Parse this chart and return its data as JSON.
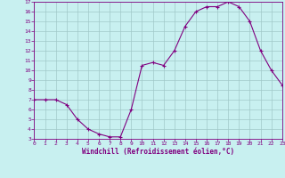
{
  "x": [
    0,
    1,
    2,
    3,
    4,
    5,
    6,
    7,
    8,
    9,
    10,
    11,
    12,
    13,
    14,
    15,
    16,
    17,
    18,
    19,
    20,
    21,
    22,
    23
  ],
  "y": [
    7,
    7,
    7,
    6.5,
    5,
    4,
    3.5,
    3.2,
    3.2,
    6,
    10.5,
    10.8,
    10.5,
    12,
    14.5,
    16,
    16.5,
    16.5,
    17,
    16.5,
    15,
    12,
    10,
    8.5
  ],
  "xlabel": "Windchill (Refroidissement éolien,°C)",
  "ylim": [
    3,
    17
  ],
  "xlim": [
    0,
    23
  ],
  "yticks": [
    3,
    4,
    5,
    6,
    7,
    8,
    9,
    10,
    11,
    12,
    13,
    14,
    15,
    16,
    17
  ],
  "xticks": [
    0,
    1,
    2,
    3,
    4,
    5,
    6,
    7,
    8,
    9,
    10,
    11,
    12,
    13,
    14,
    15,
    16,
    17,
    18,
    19,
    20,
    21,
    22,
    23
  ],
  "line_color": "#800080",
  "marker": "+",
  "bg_color": "#c8f0f0",
  "grid_color": "#a0c8c8"
}
